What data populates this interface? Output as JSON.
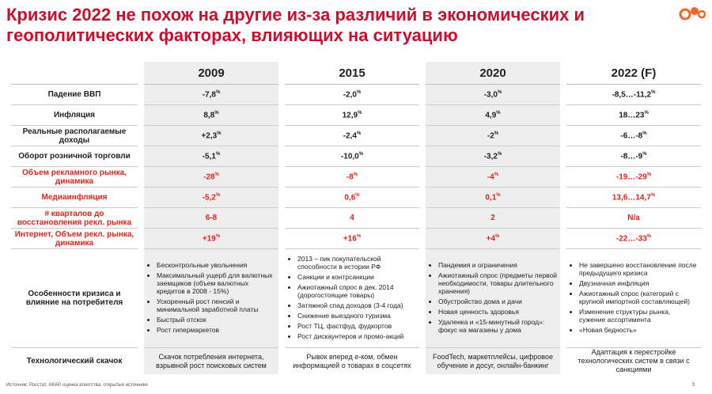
{
  "header": {
    "title": "Кризис 2022 не похож на другие из-за различий в экономических и геополитических факторах, влияющих на ситуацию"
  },
  "table": {
    "columns": [
      "2009",
      "2015",
      "2020",
      "2022 (F)"
    ],
    "rows": [
      {
        "label": "Падение ВВП",
        "highlight": false,
        "cells": [
          {
            "text": "-7,8",
            "sup": "%"
          },
          {
            "text": "-2,0",
            "sup": "%"
          },
          {
            "text": "-3,0",
            "sup": "%"
          },
          {
            "text": "-8,5…-11,2",
            "sup": "%"
          }
        ]
      },
      {
        "label": "Инфляция",
        "highlight": false,
        "cells": [
          {
            "text": "8,8",
            "sup": "%"
          },
          {
            "text": "12,9",
            "sup": "%"
          },
          {
            "text": "4,9",
            "sup": "%"
          },
          {
            "text": "18…23",
            "sup": "%"
          }
        ]
      },
      {
        "label": "Реальные располагаемые доходы",
        "highlight": false,
        "cells": [
          {
            "text": "+2,3",
            "sup": "%"
          },
          {
            "text": "-2,4",
            "sup": "%"
          },
          {
            "text": "-2",
            "sup": "%"
          },
          {
            "text": "-6…-8",
            "sup": "%"
          }
        ]
      },
      {
        "label": "Оборот розничной торговли",
        "highlight": false,
        "cells": [
          {
            "text": "-5,1",
            "sup": "%"
          },
          {
            "text": "-10,0",
            "sup": "%"
          },
          {
            "text": "-3,2",
            "sup": "%"
          },
          {
            "text": "-8…-9",
            "sup": "%"
          }
        ]
      },
      {
        "label": "Объем рекламного рынка, динамика",
        "highlight": true,
        "cells": [
          {
            "text": "-28",
            "sup": "%"
          },
          {
            "text": "-8",
            "sup": "%"
          },
          {
            "text": "-4",
            "sup": "%"
          },
          {
            "text": "-19…-29",
            "sup": "%"
          }
        ]
      },
      {
        "label": "Медиаинфляция",
        "highlight": true,
        "cells": [
          {
            "text": "-5,2",
            "sup": "%"
          },
          {
            "text": "0,6",
            "sup": "%"
          },
          {
            "text": "0,1",
            "sup": "%"
          },
          {
            "text": "13,6…14,7",
            "sup": "%"
          }
        ]
      },
      {
        "label": "# кварталов до восстановления рекл. рынка",
        "highlight": true,
        "cells": [
          {
            "text": "6-8"
          },
          {
            "text": "4"
          },
          {
            "text": "2"
          },
          {
            "text": "N/a"
          }
        ]
      },
      {
        "label": "Интернет, Объем рекл. рынка, динамика",
        "highlight": true,
        "cells": [
          {
            "text": "+19",
            "sup": "%"
          },
          {
            "text": "+16",
            "sup": "%"
          },
          {
            "text": "+4",
            "sup": "%"
          },
          {
            "text": "-22…-33",
            "sup": "%"
          }
        ]
      }
    ],
    "features": {
      "label": "Особенности кризиса и влияние на потребителя",
      "lists": [
        [
          "Бесконтрольные увольнения",
          "Максимальный ущерб для валютных заемщиков (объем валютных кредитов в 2008 - 15%)",
          "Ускоренный рост пенсий и минимальной заработной платы",
          "Быстрый отскок",
          "Рост гипермаркетов"
        ],
        [
          "2013 – пик покупательской способности в истории РФ",
          "Санкции и контрсанкции",
          "Ажиотажный спрос в дек. 2014 (дорогостоящие товары)",
          "Затяжной спад доходов (3-4 года)",
          "Снижение выездного туризма",
          "Рост ТЦ, фастфуд, фудкортов",
          "Рост дискаунтеров и промо-акций"
        ],
        [
          "Пандемия и ограничения",
          "Ажиотажный спрос (предметы первой необходимости, товары длительного хранения)",
          "Обустройство дома и дачи",
          "Новая ценность здоровья",
          "Удаленка и «15-минутный город»: фокус на магазины у дома"
        ],
        [
          "Не завершено восстановление после предыдущего кризиса",
          "Двузначная инфляция",
          "Ажиотажный спрос (категорий с крупной импортной составляющей)",
          "Изменение структуры рынка, сужение ассортимента",
          "«Новая бедность»"
        ]
      ]
    },
    "tech": {
      "label": "Технологический скачок",
      "cells": [
        "Скачок потребления интернета, взрывной рост поисковых систем",
        "Рывок вперед е-ком, обмен информацией о товарах в соцсетях",
        "FoodTech, маркетплейсы, цифровое обучение и досуг, онлайн-банкинг",
        "Адаптация к перестройке технологических систем в связи с санкциями"
      ]
    }
  },
  "footer": {
    "source": "Источник: Росстат, АКАР, оценка агентства, открытые источники",
    "page": "3"
  }
}
